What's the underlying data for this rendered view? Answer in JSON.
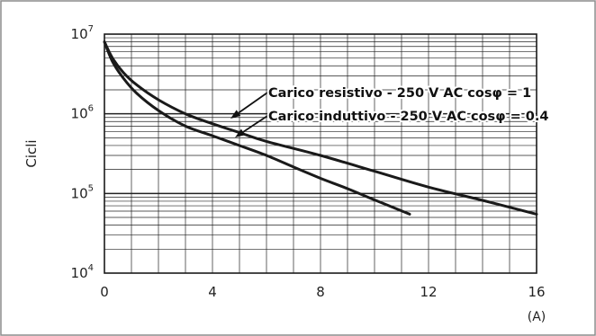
{
  "chart_data": {
    "type": "line",
    "title": "",
    "xlabel": "(A)",
    "ylabel": "Cicli",
    "x_range": [
      0,
      16
    ],
    "y_range": [
      10000,
      10000000
    ],
    "y_scale": "log",
    "grid": true,
    "x_ticks": [
      {
        "value": 0,
        "label": "0"
      },
      {
        "value": 4,
        "label": "4"
      },
      {
        "value": 8,
        "label": "8"
      },
      {
        "value": 12,
        "label": "12"
      },
      {
        "value": 16,
        "label": "16"
      }
    ],
    "y_ticks": [
      {
        "value": 10000,
        "base": "10",
        "exp": "4"
      },
      {
        "value": 100000,
        "base": "10",
        "exp": "5"
      },
      {
        "value": 1000000,
        "base": "10",
        "exp": "6"
      },
      {
        "value": 10000000,
        "base": "10",
        "exp": "7"
      }
    ],
    "series": [
      {
        "name": "Carico resistivo - 250 V AC cosφ = 1",
        "color": "#1a1a1a",
        "x": [
          0,
          0.3,
          0.7,
          1.2,
          2,
          3,
          4,
          5,
          6,
          8,
          10,
          12,
          14,
          16
        ],
        "y": [
          8000000,
          5000000,
          3300000,
          2300000,
          1500000,
          1000000,
          750000,
          580000,
          450000,
          300000,
          190000,
          120000,
          82000,
          55000
        ]
      },
      {
        "name": "Carico induttivo - 250 V AC cosφ = 0.4",
        "color": "#1a1a1a",
        "x": [
          0,
          0.3,
          0.7,
          1.2,
          2,
          3,
          4,
          5,
          6,
          7,
          8,
          9,
          10,
          11.3
        ],
        "y": [
          8000000,
          4500000,
          2800000,
          1800000,
          1100000,
          700000,
          530000,
          400000,
          300000,
          215000,
          155000,
          115000,
          83000,
          55000
        ]
      }
    ],
    "annotations": [
      {
        "text": "Carico resistivo - 250 V AC cosφ = 1",
        "series": 0
      },
      {
        "text": "Carico induttivo - 250 V AC cosφ = 0.4",
        "series": 1
      }
    ]
  }
}
